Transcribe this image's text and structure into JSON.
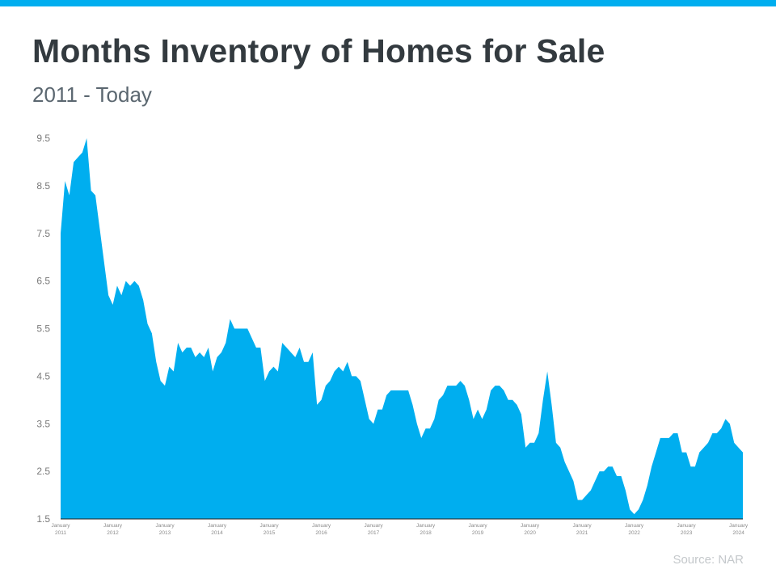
{
  "header": {
    "title": "Months Inventory of Homes for Sale",
    "subtitle": "2011 - Today"
  },
  "footer": {
    "source": "Source: NAR"
  },
  "colors": {
    "accent": "#00aeef",
    "area_fill": "#00aeef",
    "axis": "#222222"
  },
  "chart_data": {
    "type": "area",
    "title": "Months Inventory of Homes for Sale",
    "subtitle": "2011 - Today",
    "xlabel": "",
    "ylabel": "",
    "ylim": [
      1.5,
      9.5
    ],
    "yticks": [
      1.5,
      2.5,
      3.5,
      4.5,
      5.5,
      6.5,
      7.5,
      8.5,
      9.5
    ],
    "grid": false,
    "legend": "none",
    "x_start": "January 2011",
    "x_end": "January 2024",
    "x_ticks": [
      {
        "month": "January",
        "year": "2011"
      },
      {
        "month": "January",
        "year": "2012"
      },
      {
        "month": "January",
        "year": "2013"
      },
      {
        "month": "January",
        "year": "2014"
      },
      {
        "month": "January",
        "year": "2015"
      },
      {
        "month": "January",
        "year": "2016"
      },
      {
        "month": "January",
        "year": "2017"
      },
      {
        "month": "January",
        "year": "2018"
      },
      {
        "month": "January",
        "year": "2019"
      },
      {
        "month": "January",
        "year": "2020"
      },
      {
        "month": "January",
        "year": "2021"
      },
      {
        "month": "January",
        "year": "2022"
      },
      {
        "month": "January",
        "year": "2023"
      },
      {
        "month": "January",
        "year": "2024"
      }
    ],
    "series": [
      {
        "values": [
          7.5,
          8.6,
          8.3,
          9.0,
          9.1,
          9.2,
          9.5,
          8.4,
          8.3,
          7.6,
          6.9,
          6.2,
          6.0,
          6.4,
          6.2,
          6.5,
          6.4,
          6.5,
          6.4,
          6.1,
          5.6,
          5.4,
          4.8,
          4.4,
          4.3,
          4.7,
          4.6,
          5.2,
          5.0,
          5.1,
          5.1,
          4.9,
          5.0,
          4.9,
          5.1,
          4.6,
          4.9,
          5.0,
          5.2,
          5.7,
          5.5,
          5.5,
          5.5,
          5.5,
          5.3,
          5.1,
          5.1,
          4.4,
          4.6,
          4.7,
          4.6,
          5.2,
          5.1,
          5.0,
          4.9,
          5.1,
          4.8,
          4.8,
          5.0,
          3.9,
          4.0,
          4.3,
          4.4,
          4.6,
          4.7,
          4.6,
          4.8,
          4.5,
          4.5,
          4.4,
          4.0,
          3.6,
          3.5,
          3.8,
          3.8,
          4.1,
          4.2,
          4.2,
          4.2,
          4.2,
          4.2,
          3.9,
          3.5,
          3.2,
          3.4,
          3.4,
          3.6,
          4.0,
          4.1,
          4.3,
          4.3,
          4.3,
          4.4,
          4.3,
          4.0,
          3.6,
          3.8,
          3.6,
          3.8,
          4.2,
          4.3,
          4.3,
          4.2,
          4.0,
          4.0,
          3.9,
          3.7,
          3.0,
          3.1,
          3.1,
          3.3,
          4.0,
          4.6,
          3.9,
          3.1,
          3.0,
          2.7,
          2.5,
          2.3,
          1.9,
          1.9,
          2.0,
          2.1,
          2.3,
          2.5,
          2.5,
          2.6,
          2.6,
          2.4,
          2.4,
          2.1,
          1.7,
          1.6,
          1.7,
          1.9,
          2.2,
          2.6,
          2.9,
          3.2,
          3.2,
          3.2,
          3.3,
          3.3,
          2.9,
          2.9,
          2.6,
          2.6,
          2.9,
          3.0,
          3.1,
          3.3,
          3.3,
          3.4,
          3.6,
          3.5,
          3.1,
          3.0,
          2.9
        ]
      }
    ]
  }
}
